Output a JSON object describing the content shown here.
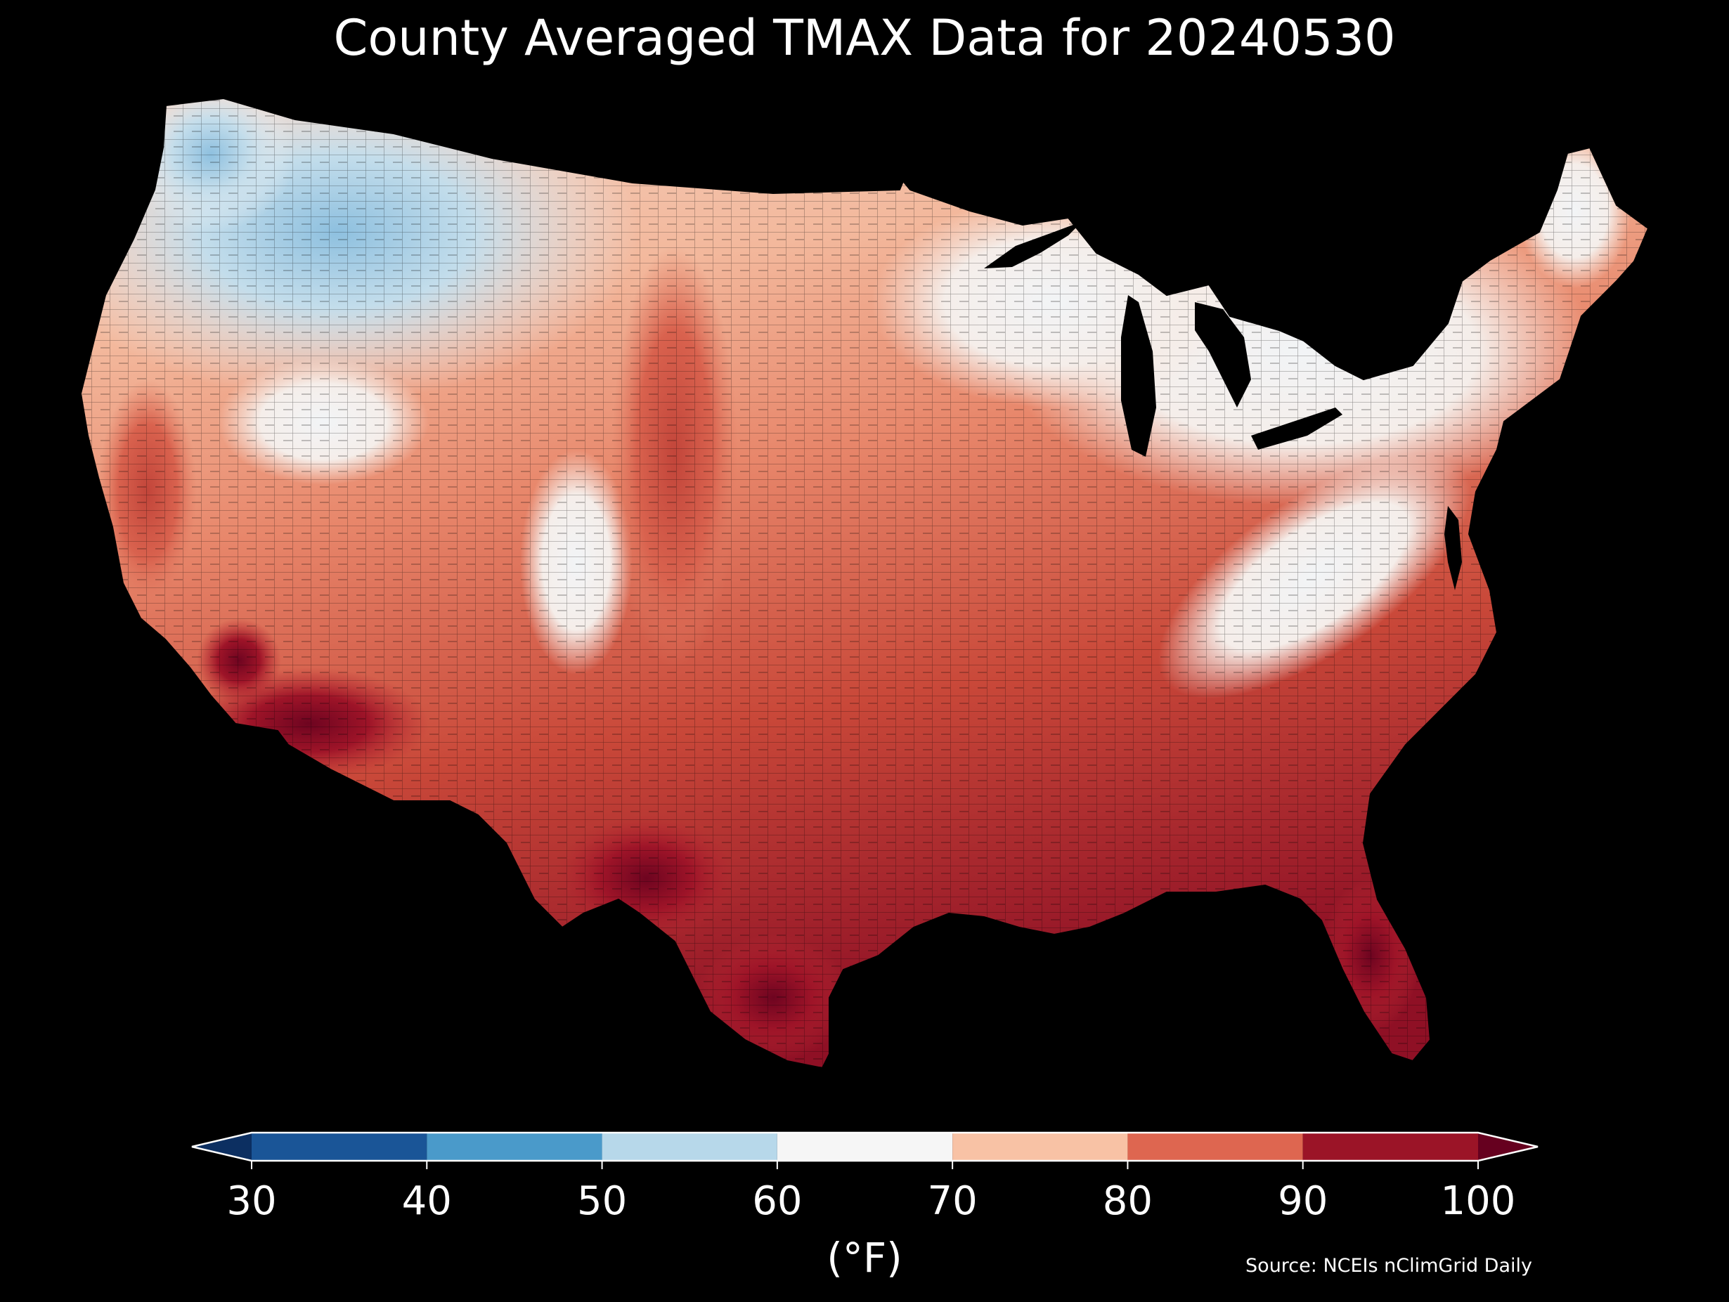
{
  "map": {
    "title": "County Averaged TMAX Data for 20240530",
    "region": "Contiguous United States (county level)",
    "background_color": "#000000",
    "county_border_color": "#000000"
  },
  "colorbar": {
    "unit_label": "(°F)",
    "ticks": [
      "30",
      "40",
      "50",
      "60",
      "70",
      "80",
      "90",
      "100"
    ],
    "bins": [
      {
        "min": 30,
        "max": 40,
        "color": "#1a5597"
      },
      {
        "min": 40,
        "max": 50,
        "color": "#4a9aca"
      },
      {
        "min": 50,
        "max": 60,
        "color": "#b7d8ea"
      },
      {
        "min": 60,
        "max": 70,
        "color": "#f6f6f6"
      },
      {
        "min": 70,
        "max": 80,
        "color": "#f8c2a5"
      },
      {
        "min": 80,
        "max": 90,
        "color": "#de6650"
      },
      {
        "min": 90,
        "max": 100,
        "color": "#9b1427"
      }
    ],
    "under_color": "#0c2f61",
    "over_color": "#66001f",
    "extend": "both"
  },
  "source": "Source: NCEIs nClimGrid Daily"
}
